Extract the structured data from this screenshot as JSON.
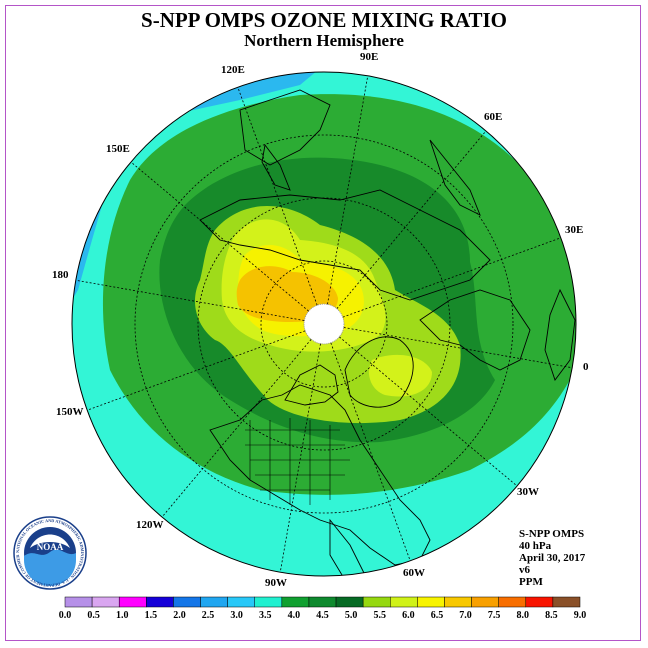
{
  "title": "S-NPP OMPS OZONE MIXING RATIO",
  "subtitle": "Northern Hemisphere",
  "info": {
    "instrument": "S-NPP OMPS",
    "level": "40 hPa",
    "date": "April 30, 2017",
    "version": "v6",
    "units": "PPM"
  },
  "longitude_labels": {
    "e90": "90E",
    "e60": "60E",
    "e30": "30E",
    "zero": "0",
    "w30": "30W",
    "w60": "60W",
    "w90": "90W",
    "w120": "120W",
    "w150": "150W",
    "dateline": "180",
    "e150": "150E",
    "e120": "120E"
  },
  "logo": {
    "name": "NOAA",
    "ring_text": "NATIONAL OCEANIC AND ATMOSPHERIC ADMINISTRATION · U.S. DEPARTMENT OF COMMERCE"
  },
  "colorbar": {
    "ticks": [
      "0.0",
      "0.5",
      "1.0",
      "1.5",
      "2.0",
      "2.5",
      "3.0",
      "3.5",
      "4.0",
      "4.5",
      "5.0",
      "5.5",
      "6.0",
      "6.5",
      "7.0",
      "7.5",
      "8.0",
      "8.5",
      "9.0"
    ],
    "colors": [
      "#b690e8",
      "#d9a6f0",
      "#ff00ff",
      "#1500d8",
      "#1476e8",
      "#20a6f0",
      "#28c8f8",
      "#20f0d0",
      "#10a030",
      "#0e8a2e",
      "#066b24",
      "#96d810",
      "#d0f218",
      "#f8f400",
      "#f8c800",
      "#f8a000",
      "#f86e00",
      "#f81400",
      "#8a5028"
    ]
  },
  "map_colors": {
    "background": "#33f5d6",
    "band_35": "#33f5d6",
    "band_40": "#2cac34",
    "band_45": "#178a2a",
    "band_50": "#9fdb1a",
    "band_55": "#d3f21a",
    "band_60": "#f6f200",
    "band_65": "#f5c200",
    "band_30": "#2bb8ef",
    "no_data": "#ffffff"
  }
}
